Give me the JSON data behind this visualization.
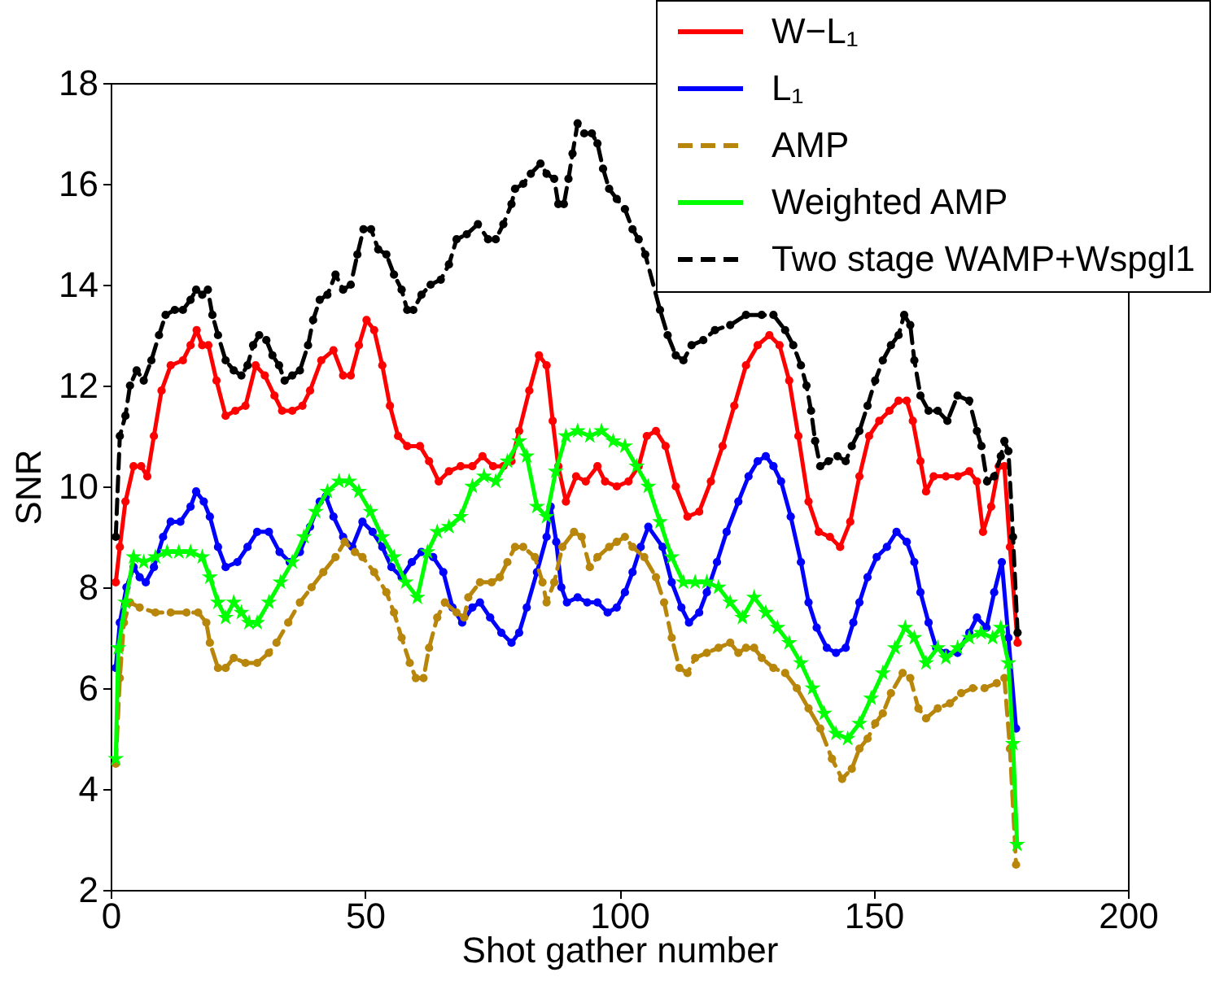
{
  "chart_data": {
    "type": "line",
    "xlabel": "Shot gather number",
    "ylabel": "SNR",
    "xlim": [
      0,
      200
    ],
    "xticks": [
      0,
      50,
      100,
      150,
      200
    ],
    "ylim": [
      2,
      18
    ],
    "yticks": [
      2,
      4,
      6,
      8,
      10,
      12,
      14,
      16,
      18
    ],
    "legend": "top right",
    "series": [
      {
        "name": "W−L₁",
        "color": "#ff0000",
        "marker": "circle",
        "line_style": "solid",
        "x": [
          1,
          1.8,
          2.9,
          4.5,
          6,
          7.2,
          8.5,
          10,
          11.8,
          14.2,
          15.7,
          16.9,
          18,
          19.2,
          20.8,
          22.6,
          24.5,
          26.5,
          28.5,
          30.3,
          32.2,
          33.7,
          35.7,
          37.7,
          39.2,
          41.4,
          43.8,
          45.7,
          47.2,
          48.8,
          50.3,
          51.8,
          53.4,
          54.9,
          56.5,
          58.3,
          60.8,
          62.6,
          64.5,
          66.5,
          68.8,
          71.1,
          73.1,
          75.2,
          77.2,
          78.8,
          80.3,
          82.3,
          84.2,
          85.7,
          86.9,
          88,
          89.5,
          91.5,
          93.4,
          95.7,
          97.2,
          99.5,
          101.8,
          103.8,
          105.4,
          107.2,
          109.1,
          111.1,
          113.4,
          115.7,
          118,
          120.3,
          122.6,
          124.9,
          127.2,
          129.5,
          131.5,
          133.4,
          135.2,
          137.2,
          139.2,
          141.4,
          143.4,
          145.4,
          147.2,
          149.1,
          151.1,
          153.1,
          154.9,
          156.5,
          157.7,
          159.2,
          160.3,
          161.8,
          164.2,
          166.5,
          168.8,
          170.3,
          171.5,
          173.1,
          174.6,
          175.7,
          176.8,
          178.3
        ],
        "values": [
          8.1,
          8.8,
          9.7,
          10.4,
          10.4,
          10.2,
          11.0,
          11.9,
          12.4,
          12.5,
          12.8,
          13.1,
          12.8,
          12.8,
          12.1,
          11.4,
          11.5,
          11.6,
          12.4,
          12.2,
          11.8,
          11.5,
          11.5,
          11.6,
          11.9,
          12.5,
          12.7,
          12.2,
          12.2,
          12.8,
          13.3,
          13.1,
          12.4,
          11.6,
          11.0,
          10.8,
          10.8,
          10.5,
          10.1,
          10.3,
          10.4,
          10.4,
          10.6,
          10.4,
          10.4,
          10.5,
          11.1,
          11.9,
          12.6,
          12.4,
          11.3,
          10.4,
          9.7,
          10.2,
          10.1,
          10.4,
          10.1,
          10.0,
          10.1,
          10.4,
          11.0,
          11.1,
          10.8,
          10.0,
          9.4,
          9.5,
          10.1,
          10.8,
          11.6,
          12.4,
          12.8,
          13.0,
          12.8,
          12.1,
          11.0,
          9.7,
          9.1,
          9.0,
          8.8,
          9.3,
          10.2,
          11.0,
          11.3,
          11.5,
          11.7,
          11.7,
          11.3,
          10.5,
          9.9,
          10.2,
          10.2,
          10.2,
          10.3,
          10.1,
          9.1,
          9.6,
          10.4,
          10.4,
          8.8,
          6.9
        ]
      },
      {
        "name": "L₁",
        "color": "#0000ff",
        "marker": "circle",
        "line_style": "solid",
        "x": [
          1,
          1.8,
          3.1,
          4.5,
          5.7,
          6.9,
          8.5,
          10.3,
          11.8,
          13.7,
          15.7,
          16.8,
          18.3,
          19.5,
          21.1,
          22.6,
          24.9,
          26.9,
          28.8,
          31.1,
          33.2,
          35.2,
          37.2,
          39.2,
          41.1,
          42.3,
          43.8,
          45.7,
          47.5,
          49.5,
          51.5,
          53.4,
          55.2,
          57.2,
          59.2,
          61.1,
          63.4,
          65.4,
          67.2,
          69.1,
          71.1,
          72.6,
          74.6,
          76.8,
          78.8,
          80.3,
          81.8,
          83.8,
          85.7,
          86.5,
          87.6,
          88.6,
          89.7,
          91.8,
          93.7,
          95.7,
          97.7,
          99.5,
          101.1,
          102.6,
          104.2,
          105.7,
          108.5,
          110.3,
          112.2,
          113.7,
          115.7,
          117.2,
          119.2,
          121.1,
          123.4,
          125.4,
          127.2,
          128.8,
          130.3,
          131.8,
          133.7,
          135.7,
          137.2,
          138.8,
          140.8,
          142.6,
          144.5,
          146,
          147.2,
          148.8,
          150.6,
          152.6,
          154.5,
          156.5,
          158,
          159.2,
          160.8,
          162.3,
          164.2,
          166.5,
          168.8,
          170.3,
          172.2,
          173.7,
          175.2,
          176.5,
          178
        ],
        "values": [
          6.4,
          7.3,
          8.0,
          8.4,
          8.2,
          8.1,
          8.4,
          9.0,
          9.3,
          9.3,
          9.6,
          9.9,
          9.7,
          9.4,
          8.8,
          8.4,
          8.5,
          8.8,
          9.1,
          9.1,
          8.7,
          8.5,
          8.7,
          9.2,
          9.7,
          9.8,
          9.4,
          9.0,
          8.8,
          9.3,
          9.1,
          8.8,
          8.4,
          8.2,
          8.5,
          8.7,
          8.6,
          8.3,
          7.6,
          7.3,
          7.6,
          7.7,
          7.4,
          7.1,
          6.9,
          7.1,
          7.6,
          8.3,
          9.0,
          9.6,
          8.9,
          8.0,
          7.7,
          7.8,
          7.7,
          7.7,
          7.5,
          7.6,
          7.9,
          8.3,
          8.8,
          9.2,
          8.8,
          8.1,
          7.6,
          7.3,
          7.5,
          7.9,
          8.5,
          9.1,
          9.7,
          10.2,
          10.5,
          10.6,
          10.4,
          10.1,
          9.4,
          8.5,
          7.7,
          7.2,
          6.8,
          6.7,
          6.8,
          7.3,
          7.7,
          8.2,
          8.6,
          8.8,
          9.1,
          8.9,
          8.5,
          7.9,
          7.3,
          6.8,
          6.7,
          6.7,
          7.1,
          7.4,
          7.2,
          7.9,
          8.5,
          7.0,
          5.2
        ]
      },
      {
        "name": "AMP",
        "color": "#b8860b",
        "marker": "circle",
        "line_style": "dashed",
        "x": [
          1,
          1.8,
          2.6,
          3.8,
          5.7,
          8.8,
          11.8,
          14.9,
          17.2,
          18.8,
          19.5,
          21.1,
          22.6,
          24.2,
          26.5,
          28.8,
          31.1,
          32.6,
          34.9,
          37.2,
          39.5,
          41.8,
          44.2,
          46,
          48,
          49.5,
          51.8,
          54.2,
          55.7,
          57.2,
          58.8,
          60,
          61.5,
          62.6,
          64.2,
          65.7,
          68,
          69.5,
          70.3,
          72.6,
          74.9,
          76.5,
          78,
          79.5,
          81.1,
          83.4,
          84.9,
          85.7,
          87.2,
          88.8,
          91.1,
          92.6,
          94.2,
          95.7,
          98,
          99.5,
          101.1,
          102.6,
          104.9,
          107.2,
          108.8,
          110.3,
          111.8,
          113.4,
          114.9,
          117.2,
          119.5,
          121.8,
          123.4,
          124.9,
          126.5,
          128,
          130.3,
          132.6,
          134.9,
          137.2,
          139.5,
          141.8,
          143.8,
          145.7,
          147.2,
          148.8,
          150.3,
          151.8,
          153.4,
          155.7,
          157.2,
          158.8,
          160.3,
          162.6,
          165,
          167.2,
          169.5,
          171.8,
          174.2,
          175.7,
          176.8,
          178
        ],
        "values": [
          4.5,
          6.2,
          7.3,
          7.7,
          7.6,
          7.5,
          7.5,
          7.5,
          7.5,
          7.3,
          6.9,
          6.4,
          6.4,
          6.6,
          6.5,
          6.5,
          6.7,
          6.9,
          7.3,
          7.7,
          8.0,
          8.3,
          8.6,
          8.9,
          8.7,
          8.6,
          8.3,
          7.9,
          7.5,
          7.0,
          6.5,
          6.2,
          6.2,
          6.8,
          7.4,
          7.7,
          7.5,
          7.4,
          7.8,
          8.1,
          8.1,
          8.2,
          8.5,
          8.8,
          8.8,
          8.6,
          8.1,
          7.7,
          8.1,
          8.8,
          9.1,
          9.0,
          8.4,
          8.6,
          8.8,
          8.9,
          9.0,
          8.8,
          8.6,
          8.2,
          7.7,
          7.0,
          6.4,
          6.3,
          6.6,
          6.7,
          6.8,
          6.9,
          6.7,
          6.8,
          6.8,
          6.6,
          6.4,
          6.3,
          6.0,
          5.6,
          5.2,
          4.6,
          4.2,
          4.4,
          4.8,
          5.0,
          5.3,
          5.5,
          5.9,
          6.3,
          6.2,
          5.6,
          5.4,
          5.6,
          5.7,
          5.9,
          6.0,
          6.0,
          6.1,
          6.2,
          4.8,
          2.5
        ]
      },
      {
        "name": "Weighted AMP",
        "color": "#00ff00",
        "marker": "star",
        "line_style": "solid",
        "x": [
          1,
          1.5,
          2.9,
          4.5,
          6.5,
          8.8,
          11.1,
          13.4,
          15.7,
          18,
          19.5,
          21.1,
          22.6,
          24.2,
          25.7,
          27.2,
          28.8,
          31.1,
          33.4,
          35.7,
          38,
          40.3,
          42.6,
          44.9,
          46.9,
          48.8,
          51.1,
          53.4,
          55.7,
          58,
          60.3,
          62.3,
          64.2,
          66.5,
          68.8,
          71.1,
          73.4,
          75.7,
          78,
          80.3,
          81.8,
          83.8,
          85.7,
          87.5,
          89.5,
          91.8,
          94.2,
          96.5,
          98.8,
          101.1,
          103.4,
          105.7,
          108,
          110.3,
          112.6,
          114.9,
          117.2,
          119.5,
          121.8,
          124.2,
          126.5,
          128.8,
          131.1,
          133.4,
          135.7,
          138,
          140.3,
          142.6,
          144.9,
          147.2,
          149.5,
          151.8,
          154.2,
          156.2,
          158,
          160.3,
          162.6,
          164.2,
          166.5,
          168.8,
          171.1,
          173.4,
          175,
          176.5,
          177.4,
          178.2
        ],
        "values": [
          4.6,
          6.8,
          7.7,
          8.6,
          8.5,
          8.6,
          8.7,
          8.7,
          8.7,
          8.6,
          8.2,
          7.7,
          7.4,
          7.7,
          7.5,
          7.3,
          7.3,
          7.7,
          8.1,
          8.5,
          9.0,
          9.5,
          9.9,
          10.1,
          10.1,
          9.9,
          9.5,
          9.0,
          8.6,
          8.1,
          7.8,
          8.7,
          9.1,
          9.2,
          9.4,
          10.0,
          10.2,
          10.1,
          10.5,
          10.9,
          10.6,
          9.6,
          9.4,
          10.3,
          11.0,
          11.1,
          11.0,
          11.1,
          10.9,
          10.8,
          10.4,
          10.0,
          9.3,
          8.6,
          8.1,
          8.1,
          8.1,
          8.0,
          7.7,
          7.4,
          7.8,
          7.5,
          7.2,
          6.9,
          6.5,
          6.0,
          5.5,
          5.1,
          5.0,
          5.3,
          5.8,
          6.3,
          6.8,
          7.2,
          7.0,
          6.5,
          6.8,
          6.6,
          6.8,
          7.0,
          7.1,
          7.0,
          7.2,
          6.5,
          4.9,
          2.9
        ]
      },
      {
        "name": "Two stage WAMP+Wspgl1",
        "color": "#000000",
        "marker": "circle",
        "line_style": "dashed",
        "x": [
          1,
          1.8,
          2.9,
          3.8,
          5.1,
          6.5,
          8,
          9.5,
          10.8,
          12.6,
          14.2,
          15.7,
          16.8,
          18,
          19.1,
          20,
          21.1,
          22.6,
          24.2,
          25.7,
          26.9,
          28,
          29.2,
          30.6,
          31.8,
          33.1,
          34.2,
          35.7,
          37.2,
          38.8,
          39.8,
          41.1,
          42.6,
          44.2,
          45.7,
          47.2,
          48.5,
          49.7,
          51.2,
          52.6,
          54.2,
          55.7,
          57.2,
          58.3,
          59.5,
          61.1,
          62.9,
          64.9,
          66.5,
          68,
          70,
          72.2,
          74.2,
          75.7,
          77.2,
          78.8,
          79.5,
          81.1,
          82.6,
          84.5,
          85.7,
          87.2,
          88,
          89.1,
          90,
          90.8,
          91.8,
          93.1,
          94.6,
          95.7,
          96.8,
          98,
          99.5,
          101.1,
          102.6,
          103.8,
          105.1,
          108,
          109.5,
          111.1,
          112.6,
          114.2,
          116.5,
          118.8,
          121.8,
          124.9,
          128,
          130.3,
          132.6,
          134.2,
          135.7,
          136.8,
          137.7,
          138.5,
          139.5,
          141.1,
          142.9,
          144.5,
          145.7,
          147.2,
          148.8,
          150.3,
          151.8,
          153.4,
          154.9,
          156,
          157.2,
          158,
          159.2,
          160.8,
          162.6,
          164.5,
          166.5,
          168.8,
          170.3,
          171.2,
          172.3,
          173.7,
          175,
          175.7,
          176.5,
          177.4,
          178.3
        ],
        "values": [
          9.0,
          11.0,
          11.4,
          12.0,
          12.3,
          12.1,
          12.5,
          13.0,
          13.4,
          13.5,
          13.5,
          13.7,
          13.9,
          13.8,
          13.9,
          13.4,
          13.0,
          12.5,
          12.3,
          12.2,
          12.4,
          12.8,
          13.0,
          12.9,
          12.6,
          12.4,
          12.1,
          12.2,
          12.3,
          12.8,
          13.3,
          13.7,
          13.8,
          14.2,
          13.9,
          14.0,
          14.6,
          15.1,
          15.1,
          14.7,
          14.6,
          14.2,
          13.9,
          13.5,
          13.5,
          13.8,
          14.0,
          14.1,
          14.4,
          14.9,
          15.0,
          15.2,
          14.9,
          14.9,
          15.2,
          15.6,
          15.9,
          16.0,
          16.2,
          16.4,
          16.2,
          16.1,
          15.6,
          15.6,
          16.1,
          16.6,
          17.2,
          17.0,
          17.0,
          16.8,
          16.3,
          15.9,
          15.7,
          15.5,
          15.1,
          14.9,
          14.6,
          13.5,
          13.0,
          12.6,
          12.5,
          12.8,
          12.9,
          13.1,
          13.2,
          13.4,
          13.4,
          13.4,
          13.1,
          12.8,
          12.4,
          12.0,
          11.5,
          10.9,
          10.4,
          10.5,
          10.6,
          10.5,
          10.8,
          11.1,
          11.6,
          12.1,
          12.5,
          12.8,
          13.0,
          13.4,
          13.2,
          12.5,
          11.8,
          11.5,
          11.5,
          11.3,
          11.8,
          11.7,
          11.1,
          10.8,
          10.1,
          10.2,
          10.6,
          10.9,
          10.7,
          9.0,
          7.1
        ]
      }
    ]
  }
}
